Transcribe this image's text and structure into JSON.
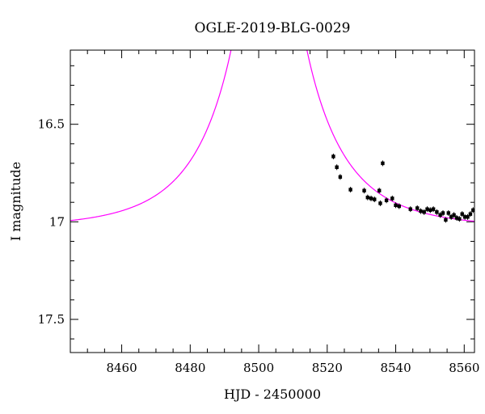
{
  "chart_data": {
    "type": "scatter",
    "title": "OGLE-2019-BLG-0029",
    "xlabel": "HJD - 2450000",
    "ylabel": "I magnitude",
    "xlim": [
      8445,
      8563
    ],
    "ylim": [
      17.67,
      16.12
    ],
    "y_inverted": true,
    "grid": false,
    "legend": "none",
    "x_ticks": [
      8460,
      8480,
      8500,
      8520,
      8540,
      8560
    ],
    "x_tick_labels": [
      "8460",
      "8480",
      "8500",
      "8520",
      "8540",
      "8560"
    ],
    "y_ticks": [
      16.5,
      17,
      17.5
    ],
    "y_tick_labels": [
      "16.5",
      "17",
      "17.5"
    ],
    "colors": {
      "model": "#ff00ff",
      "points": "#000000"
    },
    "model_curve": {
      "kind": "point-lens (Paczynski) fit",
      "t0": 8503.0,
      "tE": 24.0,
      "u0": 0.07,
      "I_base": 17.03,
      "color": "#ff00ff"
    },
    "series": [
      {
        "values": [
          [
            8521.8,
            16.665
          ],
          [
            8522.8,
            16.72
          ],
          [
            8523.8,
            16.77
          ],
          [
            8526.8,
            16.835
          ],
          [
            8530.8,
            16.84
          ],
          [
            8531.8,
            16.875
          ],
          [
            8532.8,
            16.88
          ],
          [
            8533.8,
            16.885
          ],
          [
            8535.2,
            16.84
          ],
          [
            8535.5,
            16.905
          ],
          [
            8536.2,
            16.7
          ],
          [
            8537.3,
            16.89
          ],
          [
            8539.0,
            16.88
          ],
          [
            8540.0,
            16.915
          ],
          [
            8541.0,
            16.92
          ],
          [
            8544.3,
            16.935
          ],
          [
            8546.3,
            16.93
          ],
          [
            8547.3,
            16.945
          ],
          [
            8548.3,
            16.95
          ],
          [
            8549.2,
            16.935
          ],
          [
            8550.1,
            16.94
          ],
          [
            8551.0,
            16.935
          ],
          [
            8552.0,
            16.95
          ],
          [
            8553.0,
            16.965
          ],
          [
            8553.8,
            16.955
          ],
          [
            8554.6,
            16.99
          ],
          [
            8555.4,
            16.955
          ],
          [
            8556.2,
            16.975
          ],
          [
            8557.0,
            16.965
          ],
          [
            8557.8,
            16.98
          ],
          [
            8558.6,
            16.985
          ],
          [
            8559.4,
            16.96
          ],
          [
            8560.2,
            16.975
          ],
          [
            8561.0,
            16.975
          ],
          [
            8561.8,
            16.96
          ],
          [
            8562.6,
            16.94
          ]
        ]
      }
    ]
  }
}
